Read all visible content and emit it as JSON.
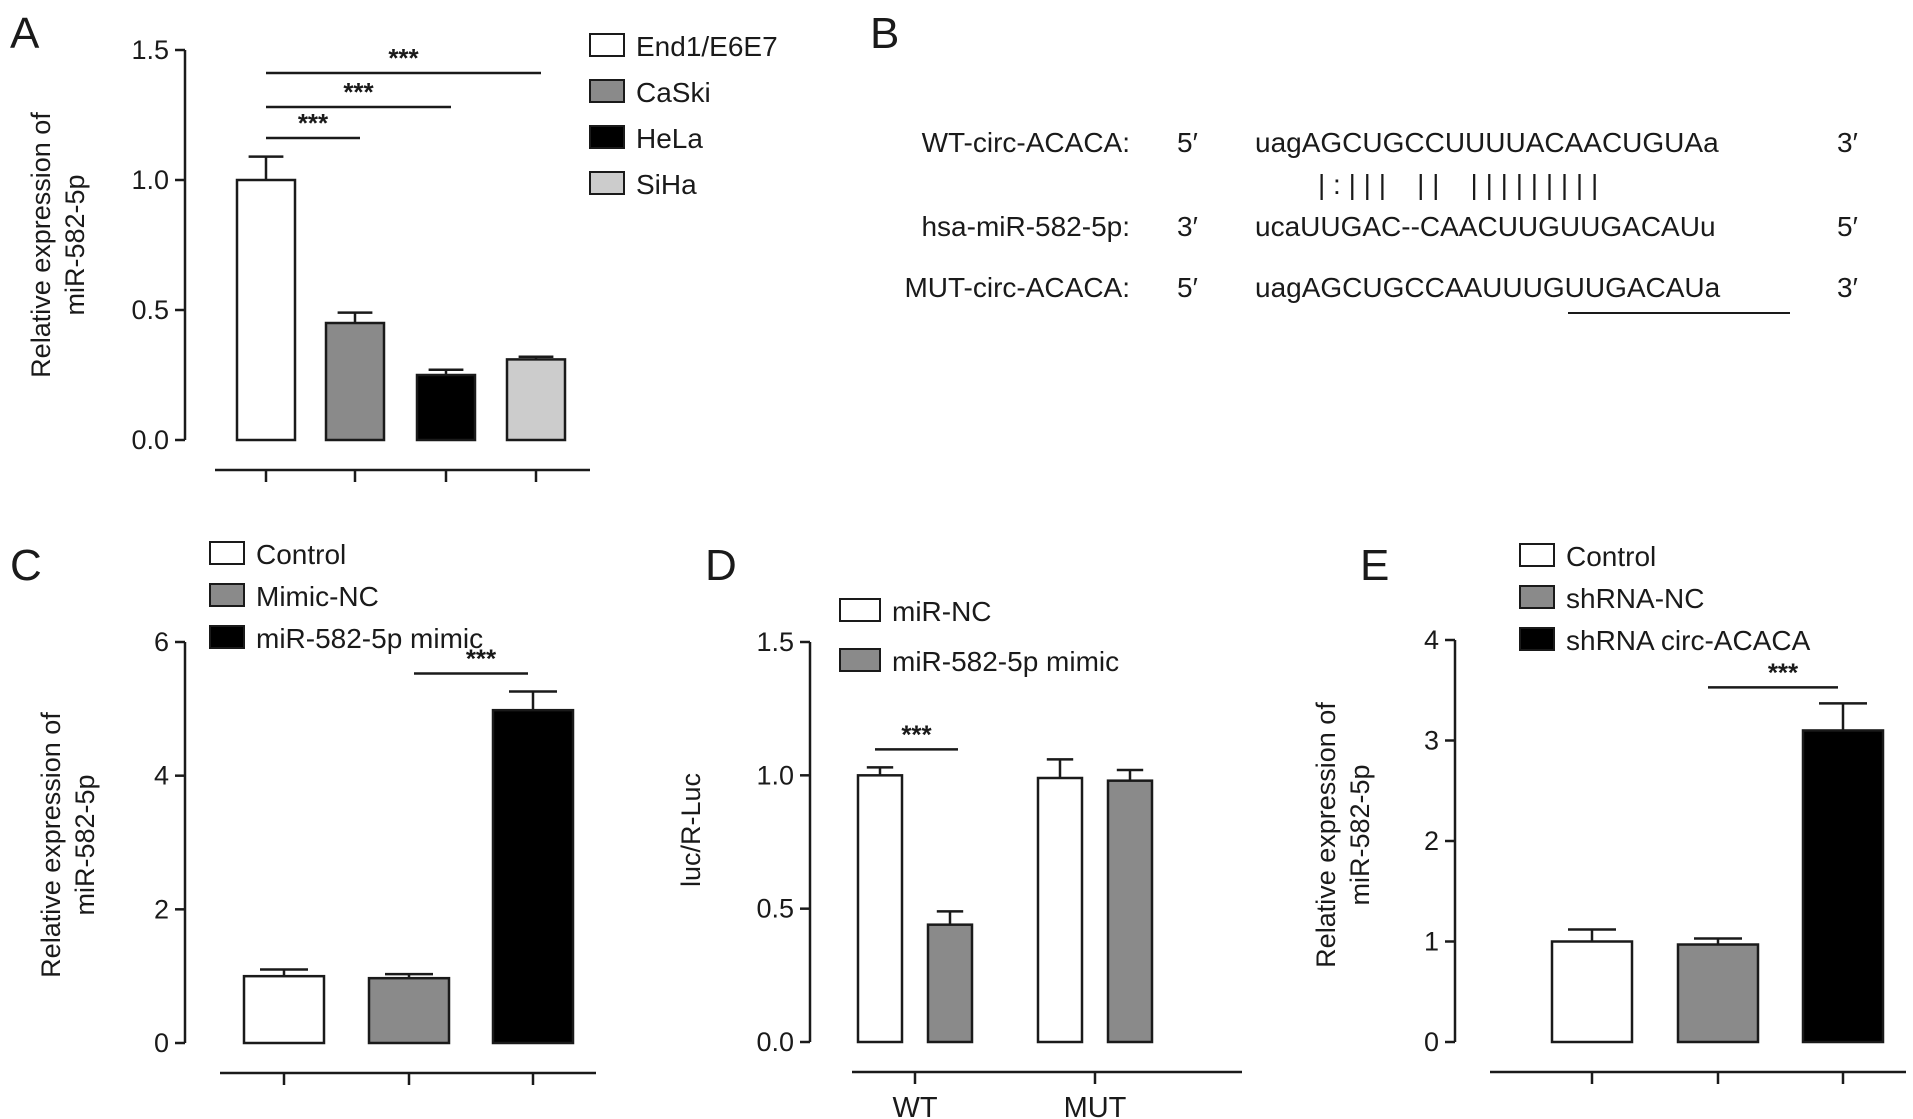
{
  "colors": {
    "white": "#ffffff",
    "mid_gray": "#8a8a8a",
    "black": "#000000",
    "light_gray": "#cccccc",
    "axis": "#1a1a1a"
  },
  "figure_b": {
    "letter": "B",
    "rows": [
      {
        "name": "WT-circ-ACACA:",
        "left": "5′",
        "seq": "uagAGCUGCCUUUUACAACUGUAa",
        "right": "3′"
      },
      {
        "name": "hsa-miR-582-5p:",
        "left": "3′",
        "seq": "ucaUUGAC--CAACUUGUUGACAUu",
        "right": "5′"
      },
      {
        "name": "MUT-circ-ACACA:",
        "left": "5′",
        "seq": "uagAGCUGCCAAUUUGUUGACAUa",
        "right": "3′"
      }
    ],
    "pairing": "| : | | |    | |    | | | | | | | | |"
  },
  "chart_data": [
    {
      "panel": "A",
      "type": "bar",
      "categories": [
        "End1/E6E7",
        "CaSki",
        "HeLa",
        "SiHa"
      ],
      "values": [
        1.0,
        0.45,
        0.25,
        0.31
      ],
      "errors": [
        0.09,
        0.04,
        0.02,
        0.01
      ],
      "colors": [
        "#ffffff",
        "#8a8a8a",
        "#000000",
        "#cccccc"
      ],
      "ylabel": "Relative expression of\nmiR-582-5p",
      "ylim": [
        0,
        1.5
      ],
      "yticks": [
        "0.0",
        "0.5",
        "1.0",
        "1.5"
      ],
      "legend": [
        "End1/E6E7",
        "CaSki",
        "HeLa",
        "SiHa"
      ],
      "legend_position": "top-right",
      "significance": [
        {
          "from": 0,
          "to": 1,
          "label": "***"
        },
        {
          "from": 0,
          "to": 2,
          "label": "***"
        },
        {
          "from": 0,
          "to": 3,
          "label": "***"
        }
      ]
    },
    {
      "panel": "C",
      "type": "bar",
      "categories": [
        "Control",
        "Mimic-NC",
        "miR-582-5p mimic"
      ],
      "values": [
        1.0,
        0.97,
        4.98
      ],
      "errors": [
        0.1,
        0.06,
        0.28
      ],
      "colors": [
        "#ffffff",
        "#8a8a8a",
        "#000000"
      ],
      "ylabel": "Relative expression of\nmiR-582-5p",
      "ylim": [
        0,
        6
      ],
      "yticks": [
        "0",
        "2",
        "4",
        "6"
      ],
      "legend": [
        "Control",
        "Mimic-NC",
        "miR-582-5p mimic"
      ],
      "legend_position": "top-left",
      "significance": [
        {
          "from": 1,
          "to": 2,
          "label": "***"
        }
      ]
    },
    {
      "panel": "D",
      "type": "bar",
      "categories": [
        "WT",
        "MUT"
      ],
      "series": [
        {
          "name": "miR-NC",
          "values": [
            1.0,
            0.99
          ],
          "errors": [
            0.03,
            0.07
          ]
        },
        {
          "name": "miR-582-5p mimic",
          "values": [
            0.44,
            0.98
          ],
          "errors": [
            0.05,
            0.04
          ]
        }
      ],
      "colors": [
        "#ffffff",
        "#8a8a8a"
      ],
      "ylabel": "luc/R-Luc",
      "ylim": [
        0,
        1.5
      ],
      "yticks": [
        "0.0",
        "0.5",
        "1.0",
        "1.5"
      ],
      "legend": [
        "miR-NC",
        "miR-582-5p mimic"
      ],
      "legend_position": "top-left",
      "significance": [
        {
          "group": 0,
          "label": "***"
        }
      ]
    },
    {
      "panel": "E",
      "type": "bar",
      "categories": [
        "Control",
        "shRNA-NC",
        "shRNA circ-ACACA"
      ],
      "values": [
        1.0,
        0.97,
        3.1
      ],
      "errors": [
        0.12,
        0.06,
        0.27
      ],
      "colors": [
        "#ffffff",
        "#8a8a8a",
        "#000000"
      ],
      "ylabel": "Relative expression of\nmiR-582-5p",
      "ylim": [
        0,
        4
      ],
      "yticks": [
        "0",
        "1",
        "2",
        "3",
        "4"
      ],
      "legend": [
        "Control",
        "shRNA-NC",
        "shRNA circ-ACACA"
      ],
      "legend_position": "top-left",
      "significance": [
        {
          "from": 1,
          "to": 2,
          "label": "***"
        }
      ]
    }
  ]
}
